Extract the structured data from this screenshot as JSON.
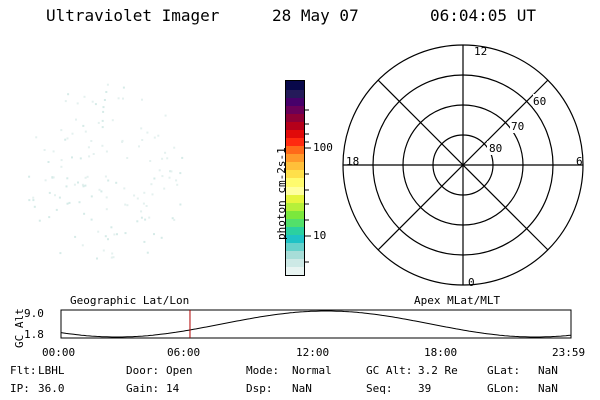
{
  "header": {
    "instrument": "Ultraviolet Imager",
    "date": "28 May 07",
    "time": "06:04:05 UT"
  },
  "colorbar": {
    "unit": "photon cm-2s-1",
    "tick_labels": [
      "100",
      "10"
    ],
    "colors": [
      "#e8f4f2",
      "#cde9e6",
      "#a7ddd8",
      "#67d1cb",
      "#1fc2c6",
      "#2bd0a0",
      "#52e06a",
      "#7be83c",
      "#b6f03a",
      "#e6f53e",
      "#ffffa0",
      "#fffb6e",
      "#ffe04a",
      "#ffc03a",
      "#ff9a2a",
      "#ff6a1a",
      "#ff2a10",
      "#e10a0a",
      "#b5001a",
      "#8e0036",
      "#6a0058",
      "#46006a",
      "#241a5a",
      "#08084a"
    ]
  },
  "polar": {
    "lat_labels": [
      "60",
      "70",
      "80"
    ],
    "mlt_labels": {
      "top": "12",
      "bottom": "0",
      "left": "18",
      "right": "6"
    }
  },
  "strip": {
    "left_title": "Geographic Lat/Lon",
    "right_title": "Apex MLat/MLT",
    "axis_label": "GC Alt",
    "y_ticks": [
      "9.0",
      "1.8"
    ],
    "x_ticks": [
      "00:00",
      "06:00",
      "12:00",
      "18:00",
      "23:59"
    ],
    "marker_color": "#b00000",
    "marker_fraction": 0.2529
  },
  "info": [
    [
      {
        "label": "Flt:",
        "value": "LBHL"
      },
      {
        "label": "Door:",
        "value": "Open"
      },
      {
        "label": "Mode:",
        "value": "Normal"
      },
      {
        "label": "GC Alt:",
        "value": "3.2 Re"
      },
      {
        "label": "GLat:",
        "value": "NaN"
      }
    ],
    [
      {
        "label": "IP:",
        "value": "36.0"
      },
      {
        "label": "Gain:",
        "value": "14"
      },
      {
        "label": "Dsp:",
        "value": "NaN"
      },
      {
        "label": "Seq:",
        "value": "39"
      },
      {
        "label": "GLon:",
        "value": "NaN"
      }
    ]
  ]
}
